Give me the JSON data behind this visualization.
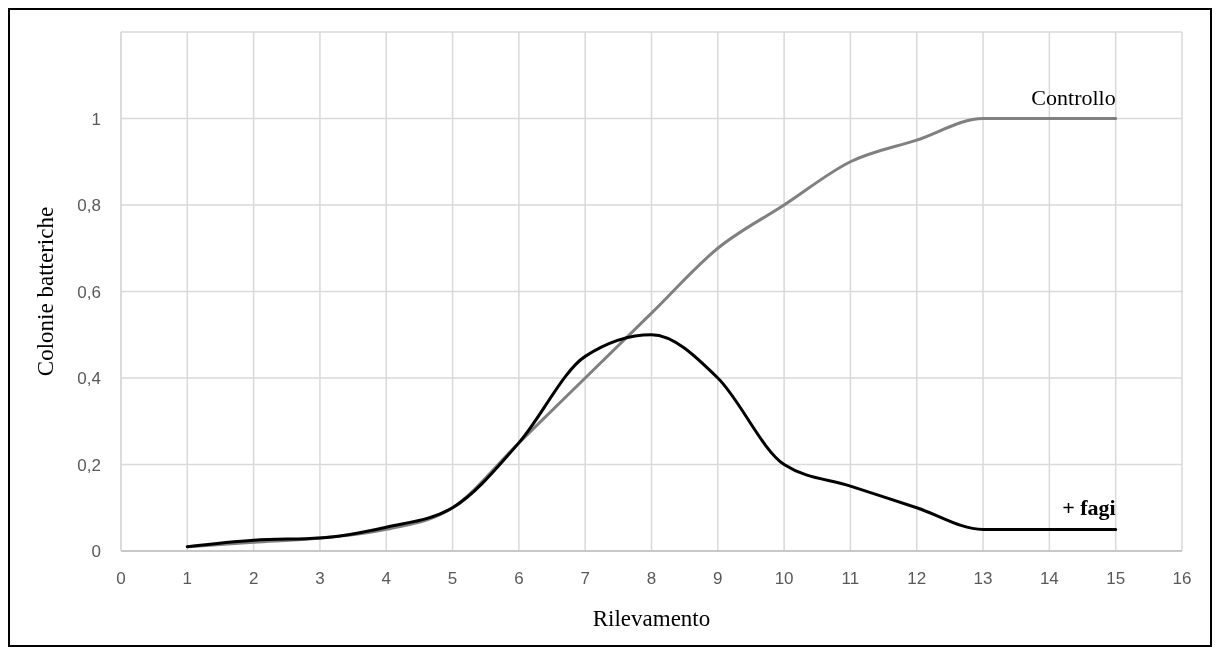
{
  "chart_data": {
    "type": "line",
    "xlabel": "Rilevamento",
    "ylabel": "Colonie batteriche",
    "x": [
      1,
      2,
      3,
      4,
      5,
      6,
      7,
      8,
      9,
      10,
      11,
      12,
      13,
      14,
      15
    ],
    "series": [
      {
        "name": "Controllo",
        "color": "#808080",
        "values": [
          0.01,
          0.02,
          0.03,
          0.05,
          0.1,
          0.25,
          0.4,
          0.55,
          0.7,
          0.8,
          0.9,
          0.95,
          1,
          1,
          1
        ]
      },
      {
        "name": "+ fagi",
        "color": "#000000",
        "values": [
          0.01,
          0.025,
          0.03,
          0.055,
          0.1,
          0.25,
          0.45,
          0.5,
          0.4,
          0.2,
          0.15,
          0.1,
          0.05,
          0.05,
          0.05
        ]
      }
    ],
    "xlim": [
      0,
      16
    ],
    "xticks": [
      0,
      1,
      2,
      3,
      4,
      5,
      6,
      7,
      8,
      9,
      10,
      11,
      12,
      13,
      14,
      15,
      16
    ],
    "ylim": [
      0,
      1.2
    ],
    "yticks": [
      0,
      {
        "value": 0.2,
        "label": "0,2"
      },
      {
        "value": 0.4,
        "label": "0,4"
      },
      {
        "value": 0.6,
        "label": "0,6"
      },
      {
        "value": 0.8,
        "label": "0,8"
      },
      1,
      {
        "value": 1.2,
        "label": null
      }
    ],
    "grid": true,
    "legend": false,
    "marker": "none",
    "line_style": "solid"
  }
}
